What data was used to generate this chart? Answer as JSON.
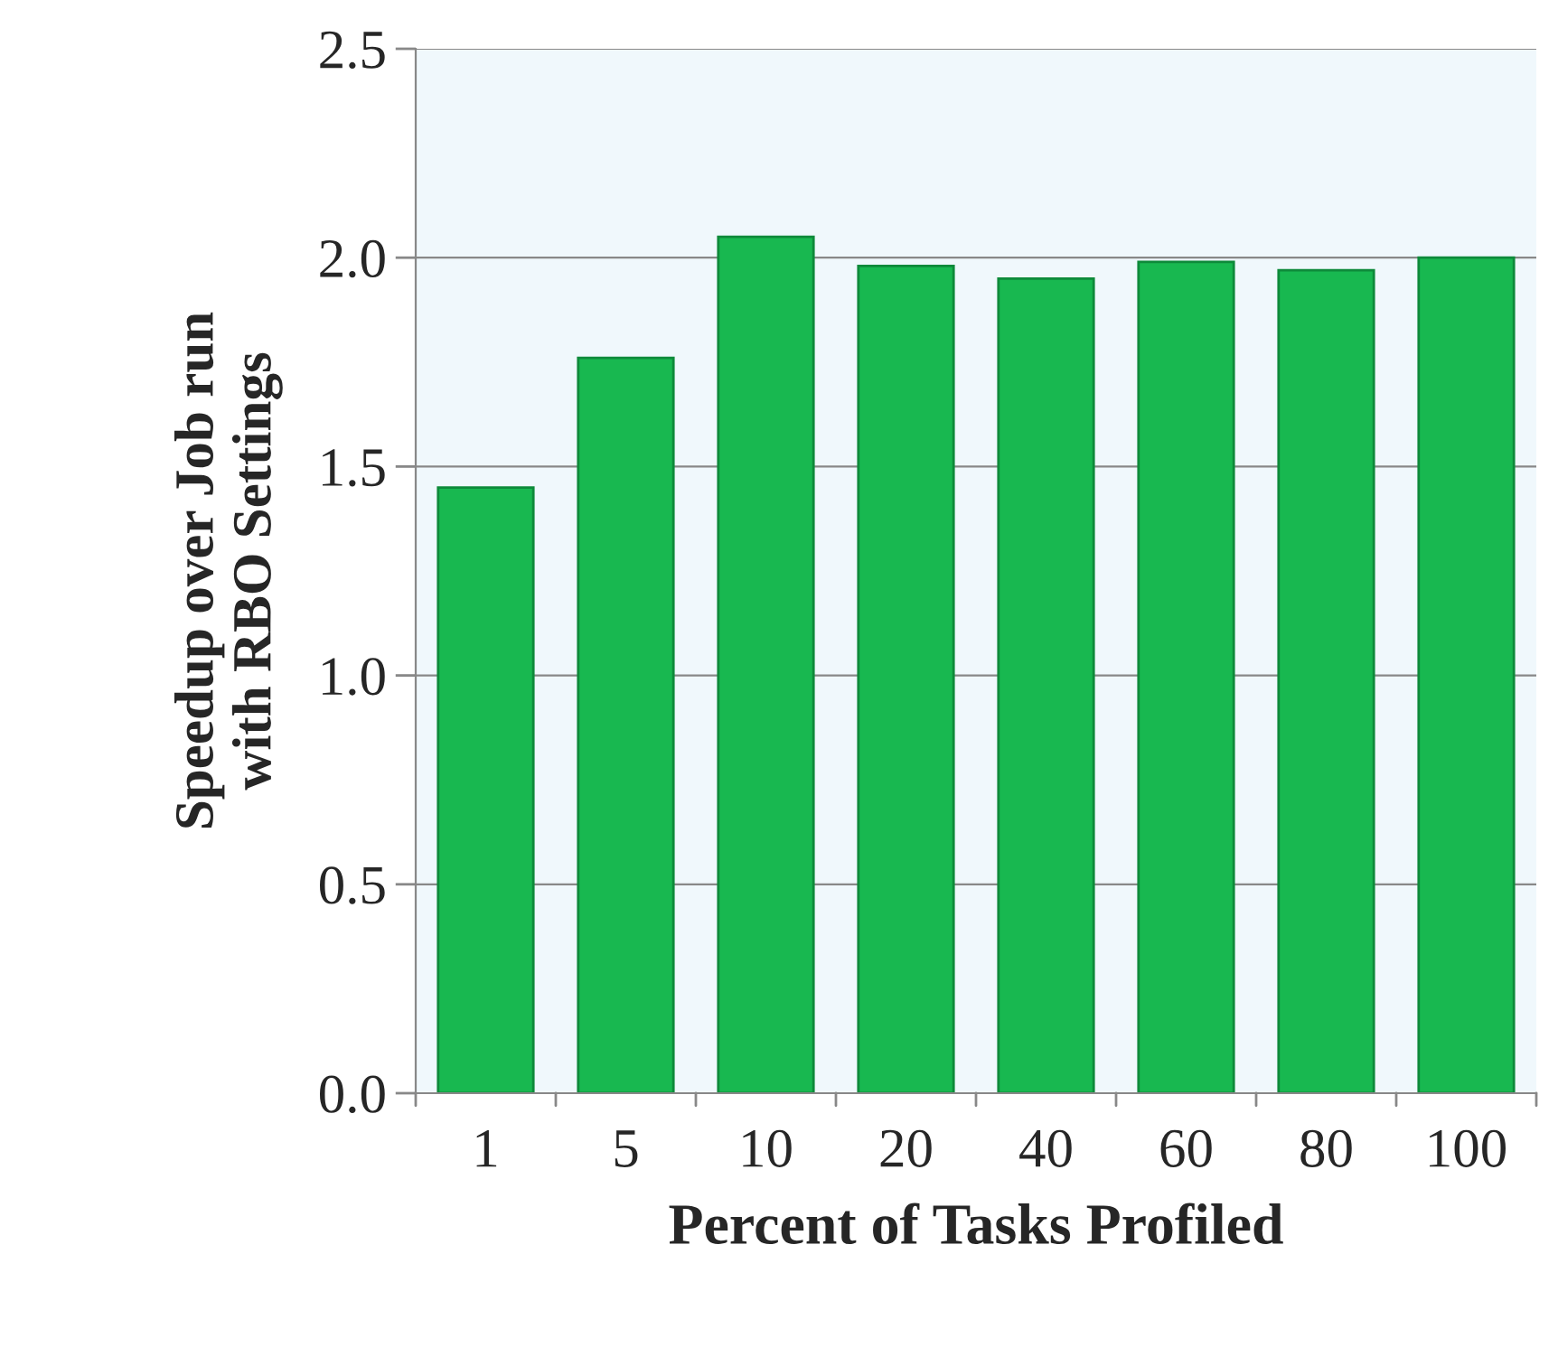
{
  "chart_data": {
    "type": "bar",
    "xlabel": "Percent of Tasks Profiled",
    "ylabel": "Speedup over Job run\nwith RBO Settings",
    "categories": [
      "1",
      "5",
      "10",
      "20",
      "40",
      "60",
      "80",
      "100"
    ],
    "values": [
      1.45,
      1.76,
      2.05,
      1.98,
      1.95,
      1.99,
      1.97,
      2.0
    ],
    "color": "#18b850",
    "ylim": [
      0,
      2.5
    ],
    "yticks": [
      {
        "value": 0,
        "label": "0.0"
      },
      {
        "value": 0.5,
        "label": "0.5"
      },
      {
        "value": 1,
        "label": "1.0"
      },
      {
        "value": 1.5,
        "label": "1.5"
      },
      {
        "value": 2,
        "label": "2.0"
      },
      {
        "value": 2.5,
        "label": "2.5"
      }
    ],
    "grid": "y"
  }
}
